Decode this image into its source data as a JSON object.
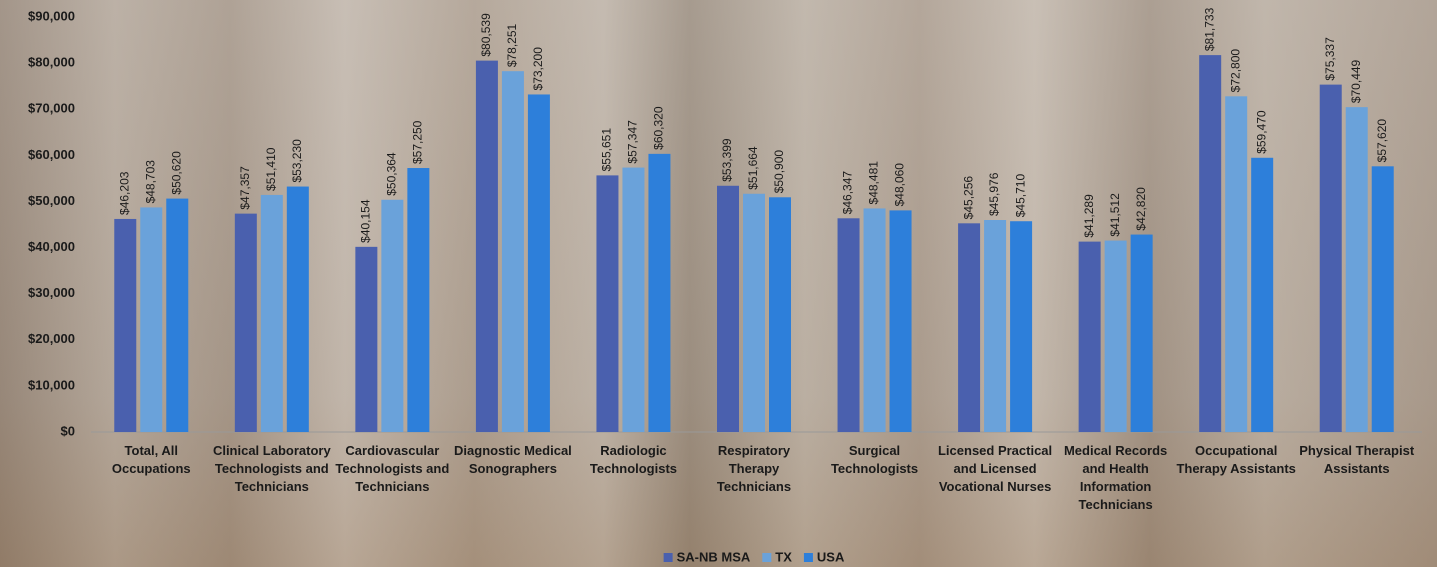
{
  "chart_data": {
    "type": "bar",
    "categories": [
      "Total, All Occupations",
      "Clinical Laboratory Technologists and Technicians",
      "Cardiovascular Technologists and Technicians",
      "Diagnostic Medical Sonographers",
      "Radiologic Technologists",
      "Respiratory Therapy Technicians",
      "Surgical Technologists",
      "Licensed Practical and Licensed Vocational Nurses",
      "Medical Records and Health Information Technicians",
      "Occupational Therapy Assistants",
      "Physical Therapist Assistants"
    ],
    "series": [
      {
        "name": "SA-NB MSA",
        "color": "#4a60ae",
        "values": [
          46203,
          47357,
          40154,
          80539,
          55651,
          53399,
          46347,
          45256,
          41289,
          81733,
          75337
        ],
        "value_labels": [
          "$46,203",
          "$47,357",
          "$40,154",
          "$80,539",
          "$55,651",
          "$53,399",
          "$46,347",
          "$45,256",
          "$41,289",
          "$81,733",
          "$75,337"
        ]
      },
      {
        "name": "TX",
        "color": "#6aa2da",
        "values": [
          48703,
          51410,
          50364,
          78251,
          57347,
          51664,
          48481,
          45976,
          41512,
          72800,
          70449
        ],
        "value_labels": [
          "$48,703",
          "$51,410",
          "$50,364",
          "$78,251",
          "$57,347",
          "$51,664",
          "$48,481",
          "$45,976",
          "$41,512",
          "$72,800",
          "$70,449"
        ]
      },
      {
        "name": "USA",
        "color": "#2d7fda",
        "values": [
          50620,
          53230,
          57250,
          73200,
          60320,
          50900,
          48060,
          45710,
          42820,
          59470,
          57620
        ],
        "value_labels": [
          "$50,620",
          "$53,230",
          "$57,250",
          "$73,200",
          "$60,320",
          "$50,900",
          "$48,060",
          "$45,710",
          "$42,820",
          "$59,470",
          "$57,620"
        ]
      }
    ],
    "ylim": [
      0,
      90000
    ],
    "yticks": [
      {
        "value": 0,
        "label": "$0"
      },
      {
        "value": 10000,
        "label": "$10,000"
      },
      {
        "value": 20000,
        "label": "$20,000"
      },
      {
        "value": 30000,
        "label": "$30,000"
      },
      {
        "value": 40000,
        "label": "$40,000"
      },
      {
        "value": 50000,
        "label": "$50,000"
      },
      {
        "value": 60000,
        "label": "$60,000"
      },
      {
        "value": 70000,
        "label": "$70,000"
      },
      {
        "value": 80000,
        "label": "$80,000"
      },
      {
        "value": 90000,
        "label": "$90,000"
      }
    ],
    "legend": "bottom"
  }
}
